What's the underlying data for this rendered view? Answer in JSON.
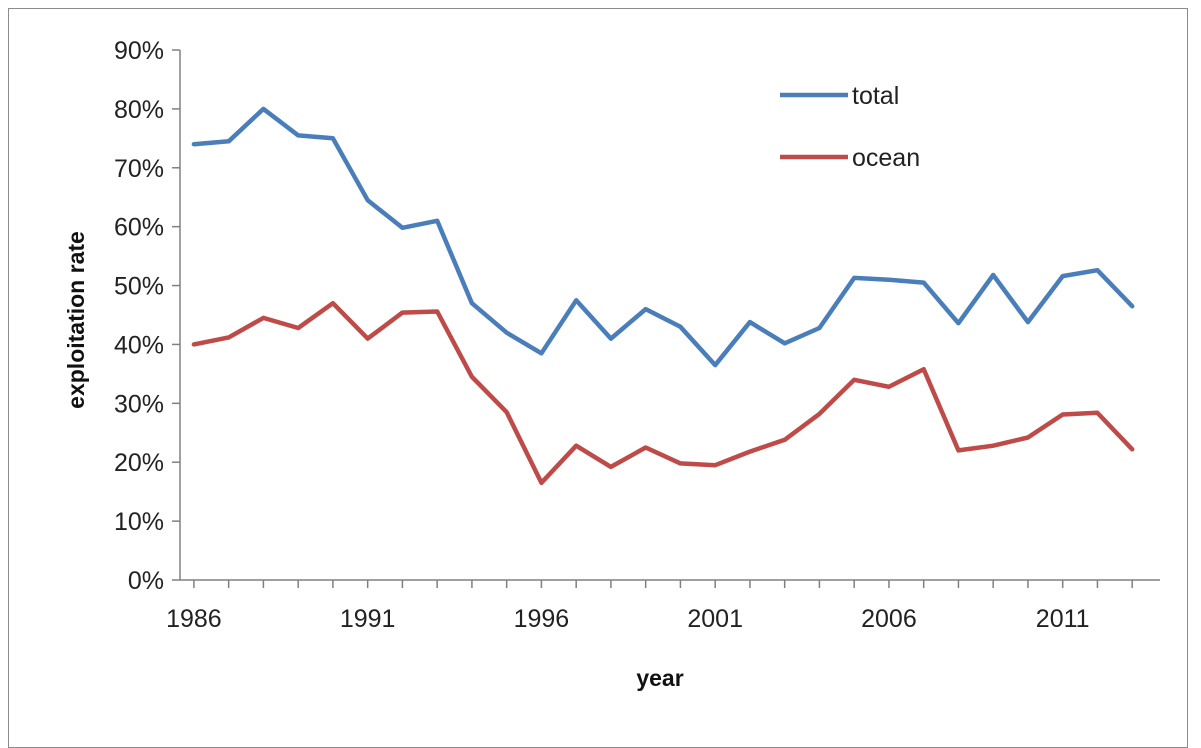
{
  "chart_data": {
    "type": "line",
    "x": [
      1986,
      1987,
      1988,
      1989,
      1990,
      1991,
      1992,
      1993,
      1994,
      1995,
      1996,
      1997,
      1998,
      1999,
      2000,
      2001,
      2002,
      2003,
      2004,
      2005,
      2006,
      2007,
      2008,
      2009,
      2010,
      2011,
      2012,
      2013
    ],
    "series": [
      {
        "name": "total",
        "color": "#4A7EBB",
        "values": [
          74,
          74.5,
          80,
          75.5,
          75,
          64.5,
          59.8,
          61,
          47,
          42,
          38.5,
          47.5,
          41,
          46,
          43,
          36.5,
          43.8,
          40.2,
          42.8,
          51.3,
          51,
          50.5,
          43.6,
          51.8,
          43.8,
          51.6,
          52.6,
          46.5
        ]
      },
      {
        "name": "ocean",
        "color": "#BE4B48",
        "values": [
          40,
          41.2,
          44.5,
          42.8,
          47,
          41,
          45.4,
          45.6,
          34.5,
          28.5,
          16.5,
          22.8,
          19.2,
          22.5,
          19.8,
          19.5,
          21.8,
          23.8,
          28.2,
          34,
          32.8,
          35.8,
          22,
          22.8,
          24.2,
          28.1,
          28.4,
          22.2
        ]
      }
    ],
    "title": "",
    "xlabel": "year",
    "ylabel": "exploitation rate",
    "xticks": [
      "1986",
      "1991",
      "1996",
      "2001",
      "2006",
      "2011"
    ],
    "xtick_values": [
      1986,
      1991,
      1996,
      2001,
      2006,
      2011
    ],
    "yticks": [
      "0%",
      "10%",
      "20%",
      "30%",
      "40%",
      "50%",
      "60%",
      "70%",
      "80%",
      "90%"
    ],
    "ytick_values": [
      0,
      10,
      20,
      30,
      40,
      50,
      60,
      70,
      80,
      90
    ],
    "xlim": [
      1985.6,
      2013.8
    ],
    "ylim": [
      0,
      90
    ],
    "grid": false,
    "legend_position": "top-right",
    "axis_color": "#808080"
  }
}
